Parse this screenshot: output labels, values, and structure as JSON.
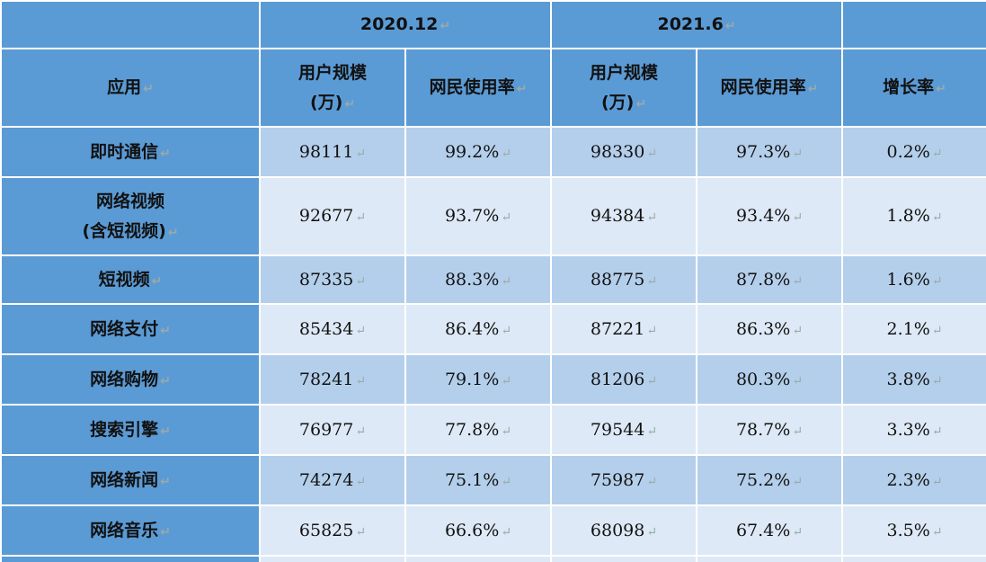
{
  "header": {
    "groups": [
      "2020.12",
      "2021.6"
    ],
    "columns": [
      "应用",
      "用户规模\n(万)",
      "网民使用率",
      "用户规模\n(万)",
      "网民使用率",
      "增长率"
    ]
  },
  "table": {
    "rows": [
      [
        "即时通信",
        "98111",
        "99.2%",
        "98330",
        "97.3%",
        "0.2%"
      ],
      [
        "网络视频\n(含短视频)",
        "92677",
        "93.7%",
        "94384",
        "93.4%",
        "1.8%"
      ],
      [
        "短视频",
        "87335",
        "88.3%",
        "88775",
        "87.8%",
        "1.6%"
      ],
      [
        "网络支付",
        "85434",
        "86.4%",
        "87221",
        "86.3%",
        "2.1%"
      ],
      [
        "网络购物",
        "78241",
        "79.1%",
        "81206",
        "80.3%",
        "3.8%"
      ],
      [
        "搜索引擎",
        "76977",
        "77.8%",
        "79544",
        "78.7%",
        "3.3%"
      ],
      [
        "网络新闻",
        "74274",
        "75.1%",
        "75987",
        "75.2%",
        "2.3%"
      ],
      [
        "网络音乐",
        "65825",
        "66.6%",
        "68098",
        "67.4%",
        "3.5%"
      ]
    ]
  }
}
